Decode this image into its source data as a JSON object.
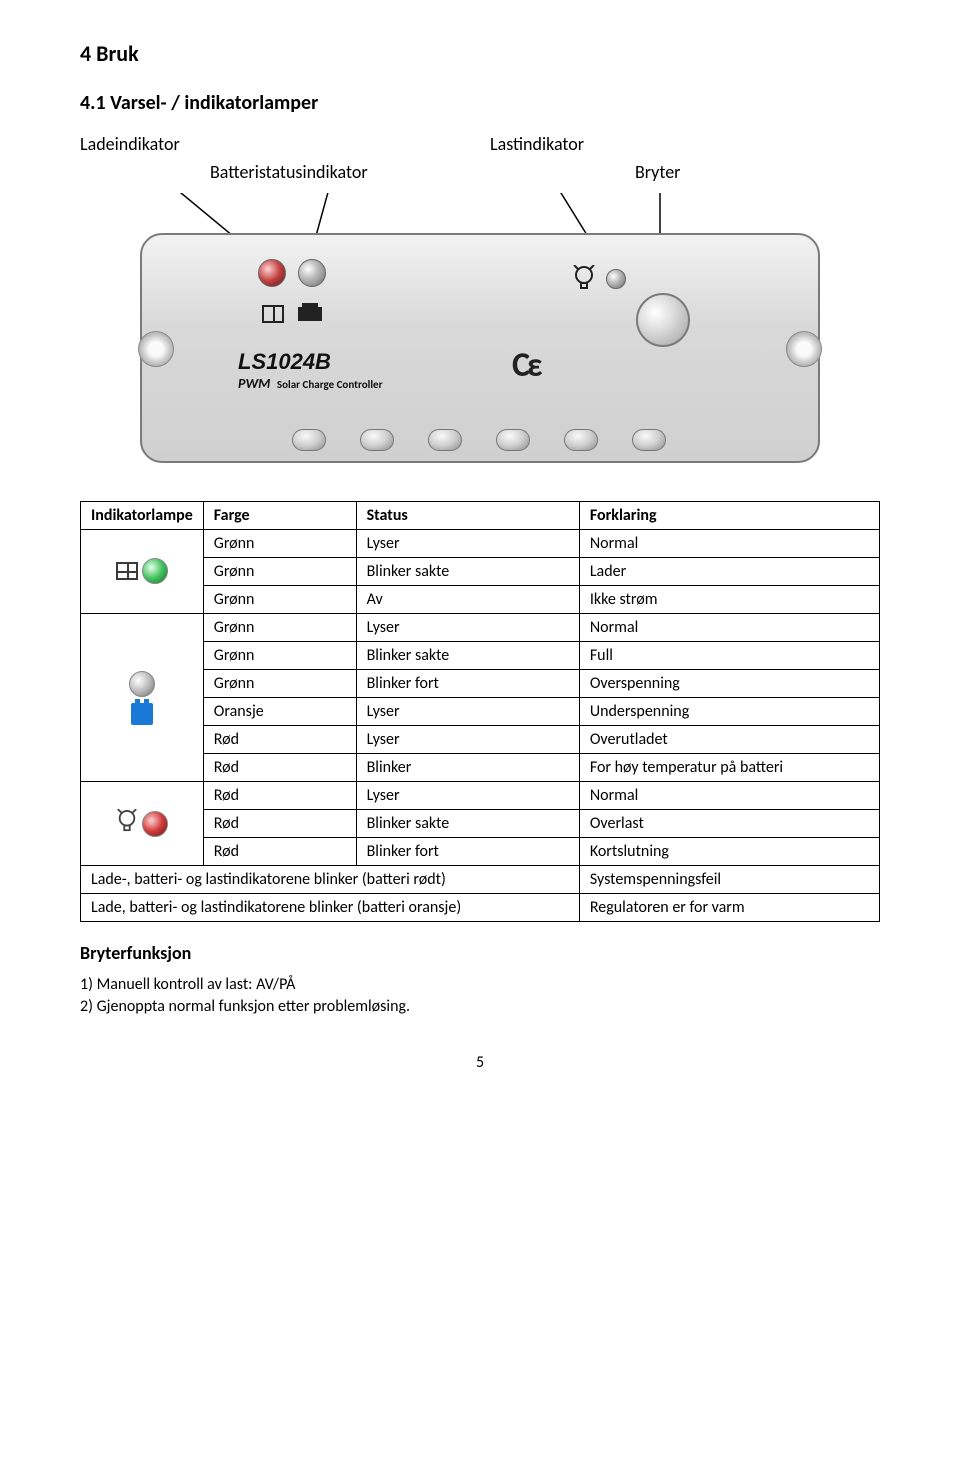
{
  "heading1": "4 Bruk",
  "heading2": "4.1 Varsel- / indikatorlamper",
  "diagram": {
    "label_charge": "Ladeindikator",
    "label_load": "Lastindikator",
    "label_battery": "Batteristatusindikator",
    "label_switch": "Bryter",
    "model": "LS1024B",
    "pwm": "PWM",
    "subtitle": "Solar Charge Controller",
    "ce": "Cε"
  },
  "table": {
    "headers": [
      "Indikatorlampe",
      "Farge",
      "Status",
      "Forklaring"
    ],
    "groups": [
      {
        "icon": "pv+green",
        "rows": [
          [
            "Grønn",
            "Lyser",
            "Normal"
          ],
          [
            "Grønn",
            "Blinker sakte",
            "Lader"
          ],
          [
            "Grønn",
            "Av",
            "Ikke strøm"
          ]
        ]
      },
      {
        "icon": "batt+grey",
        "rows": [
          [
            "Grønn",
            "Lyser",
            "Normal"
          ],
          [
            "Grønn",
            "Blinker sakte",
            "Full"
          ],
          [
            "Grønn",
            "Blinker fort",
            "Overspenning"
          ],
          [
            "Oransje",
            "Lyser",
            "Underspenning"
          ],
          [
            "Rød",
            "Lyser",
            "Overutladet"
          ],
          [
            "Rød",
            "Blinker",
            "For høy temperatur på batteri"
          ]
        ]
      },
      {
        "icon": "bulb+red",
        "rows": [
          [
            "Rød",
            "Lyser",
            "Normal"
          ],
          [
            "Rød",
            "Blinker sakte",
            "Overlast"
          ],
          [
            "Rød",
            "Blinker fort",
            "Kortslutning"
          ]
        ]
      }
    ],
    "wide_rows": [
      [
        "Lade-, batteri- og lastindikatorene blinker (batteri rødt)",
        "Systemspenningsfeil"
      ],
      [
        "Lade, batteri- og lastindikatorene blinker (batteri oransje)",
        "Regulatoren er for varm"
      ]
    ]
  },
  "switch_section": {
    "title": "Bryterfunksjon",
    "line1": "1) Manuell kontroll av last: AV/PÅ",
    "line2": "2) Gjenoppta normal funksjon etter problemløsing."
  },
  "page_number": "5",
  "colors": {
    "border": "#000000",
    "text": "#000000"
  }
}
